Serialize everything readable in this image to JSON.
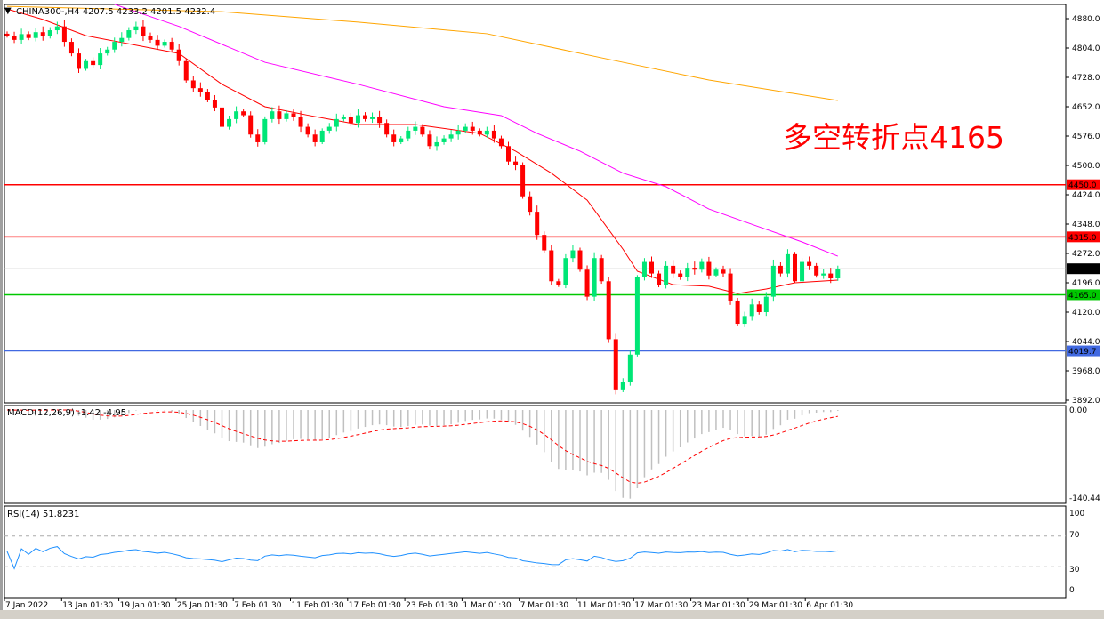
{
  "header": {
    "symbol_line": "CHINA300-,H4  4207.5 4233.2 4201.5 4232.4"
  },
  "annotation": {
    "text": "多空转折点4165",
    "color": "#ff0000"
  },
  "colors": {
    "bull": "#00e676",
    "bear": "#ff0000",
    "ma_fast": "#ff0000",
    "ma_mid": "#ff00ff",
    "ma_slow": "#ffa500",
    "macd_hist": "#c0c0c0",
    "macd_signal": "#ff0000",
    "rsi": "#1e90ff"
  },
  "chart_data": [
    {
      "type": "candlestick",
      "title": "CHINA300-,H4",
      "y_ticks": [
        4880.0,
        4804.0,
        4728.0,
        4652.0,
        4576.0,
        4500.0,
        4424.0,
        4348.0,
        4272.0,
        4196.0,
        4120.0,
        4044.0,
        3968.0,
        3892.0
      ],
      "y_tick_labels": [
        "4880.0",
        "4804.0",
        "4728.0",
        "4652.0",
        "4576.0",
        "4500.0",
        "4424.0",
        "4348.0",
        "4272.0",
        "4196.0",
        "4120.0",
        "4044.0",
        "3968.0",
        "3892.0"
      ],
      "x_tick_labels": [
        "7 Jan 2022",
        "13 Jan 01:30",
        "19 Jan 01:30",
        "25 Jan 01:30",
        "7 Feb 01:30",
        "11 Feb 01:30",
        "17 Feb 01:30",
        "23 Feb 01:30",
        "1 Mar 01:30",
        "7 Mar 01:30",
        "11 Mar 01:30",
        "17 Mar 01:30",
        "23 Mar 01:30",
        "29 Mar 01:30",
        "6 Apr 01:30"
      ],
      "closes": [
        4836,
        4825,
        4840,
        4830,
        4845,
        4835,
        4850,
        4860,
        4820,
        4790,
        4750,
        4770,
        4760,
        4790,
        4800,
        4820,
        4830,
        4850,
        4860,
        4835,
        4825,
        4810,
        4820,
        4800,
        4770,
        4720,
        4700,
        4690,
        4670,
        4650,
        4600,
        4620,
        4640,
        4630,
        4580,
        4560,
        4620,
        4640,
        4620,
        4635,
        4625,
        4600,
        4580,
        4560,
        4590,
        4600,
        4620,
        4625,
        4610,
        4630,
        4620,
        4625,
        4610,
        4580,
        4560,
        4570,
        4590,
        4600,
        4580,
        4550,
        4560,
        4570,
        4580,
        4590,
        4600,
        4590,
        4580,
        4590,
        4570,
        4550,
        4510,
        4500,
        4420,
        4380,
        4320,
        4280,
        4200,
        4190,
        4260,
        4280,
        4230,
        4160,
        4260,
        4200,
        4050,
        3920,
        3940,
        4010,
        4210,
        4250,
        4220,
        4190,
        4240,
        4220,
        4210,
        4235,
        4230,
        4250,
        4215,
        4230,
        4220,
        4150,
        4090,
        4110,
        4140,
        4120,
        4160,
        4240,
        4220,
        4270,
        4200,
        4250,
        4240,
        4215,
        4220,
        4207.5,
        4232.4
      ],
      "moving_averages": [
        {
          "color": "#ff0000",
          "points": [
            [
              0,
              4905
            ],
            [
              5,
              4878
            ],
            [
              11,
              4836
            ],
            [
              24,
              4790
            ],
            [
              30,
              4710
            ],
            [
              36,
              4652
            ],
            [
              42,
              4630
            ],
            [
              49,
              4606
            ],
            [
              57,
              4606
            ],
            [
              66,
              4583
            ],
            [
              71,
              4537
            ],
            [
              76,
              4480
            ],
            [
              81,
              4410
            ],
            [
              86,
              4283
            ],
            [
              88,
              4226
            ],
            [
              93,
              4191
            ],
            [
              98,
              4187
            ],
            [
              102,
              4168
            ],
            [
              106,
              4180
            ],
            [
              110,
              4196
            ],
            [
              116,
              4203
            ]
          ]
        },
        {
          "color": "#ff00ff",
          "points": [
            [
              15,
              4917
            ],
            [
              24,
              4860
            ],
            [
              36,
              4767
            ],
            [
              49,
              4710
            ],
            [
              61,
              4652
            ],
            [
              69,
              4629
            ],
            [
              74,
              4583
            ],
            [
              80,
              4537
            ],
            [
              86,
              4480
            ],
            [
              92,
              4445
            ],
            [
              98,
              4387
            ],
            [
              105,
              4341
            ],
            [
              111,
              4302
            ],
            [
              116,
              4265
            ]
          ]
        },
        {
          "color": "#ffa500",
          "points": [
            [
              0,
              4912
            ],
            [
              30,
              4898
            ],
            [
              49,
              4871
            ],
            [
              67,
              4841
            ],
            [
              86,
              4767
            ],
            [
              98,
              4721
            ],
            [
              116,
              4668
            ]
          ]
        }
      ],
      "horizontal_lines": [
        {
          "value": 4450.0,
          "label": "4450.0",
          "color": "#ff0000"
        },
        {
          "value": 4315.0,
          "label": "4315.0",
          "color": "#ff0000"
        },
        {
          "value": 4232.4,
          "label": "4232.4",
          "color": "#c0c0c0",
          "label_bg": "#000000"
        },
        {
          "value": 4165.0,
          "label": "4165.0",
          "color": "#00c800"
        },
        {
          "value": 4019.7,
          "label": "4019.7",
          "color": "#4169e1"
        }
      ]
    },
    {
      "type": "macd",
      "title": "MACD(12,26,9) -1.42 -4.95",
      "params": [
        12,
        26,
        9
      ],
      "y_tick_labels": [
        "0.00",
        "-140.44"
      ],
      "ylim": [
        -140.44,
        0
      ]
    },
    {
      "type": "line",
      "title": "RSI(14) 51.8231",
      "period": 14,
      "ylim": [
        0,
        100
      ],
      "y_tick_labels": [
        "100",
        "70",
        "30",
        "0"
      ],
      "levels": [
        70,
        30
      ]
    }
  ]
}
